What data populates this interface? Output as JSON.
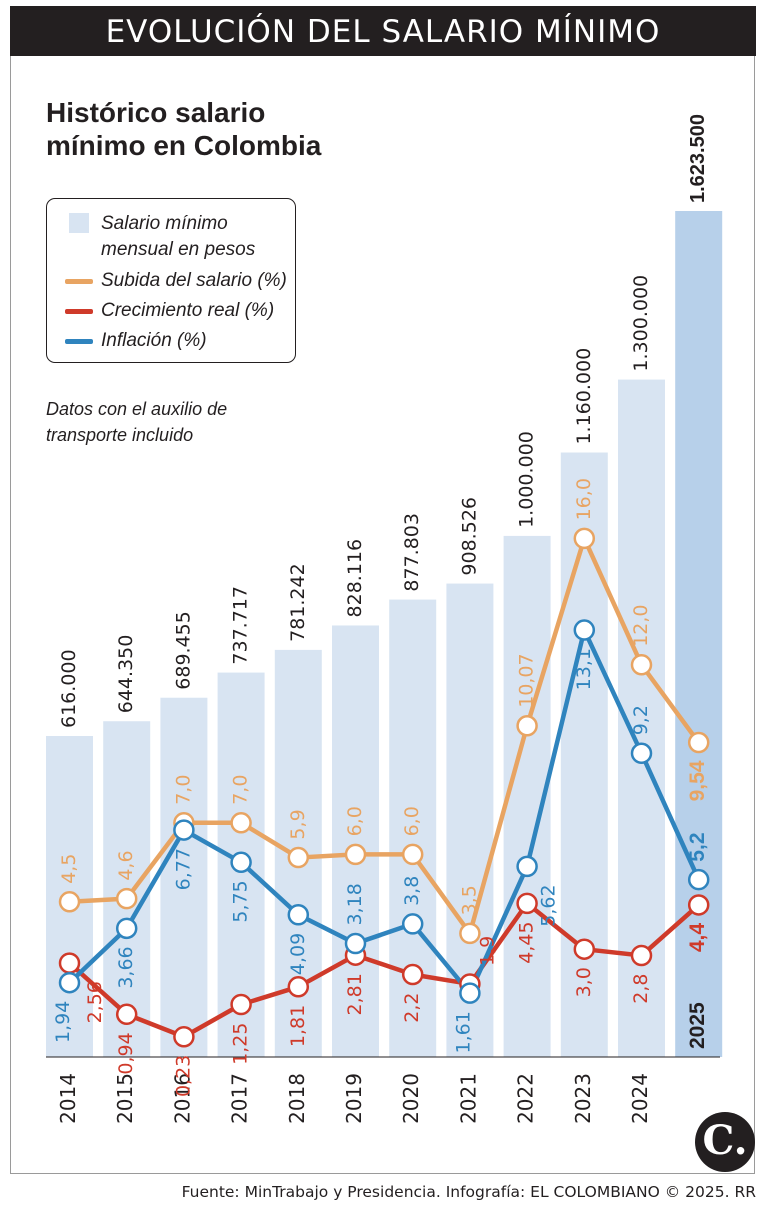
{
  "banner": {
    "title": "EVOLUCIÓN DEL SALARIO MÍNIMO"
  },
  "subtitle": "Histórico salario mínimo en Colombia",
  "legend": {
    "salary": "Salario mínimo mensual en pesos",
    "raise": "Subida del salario (%)",
    "real": "Crecimiento real (%)",
    "inflation": "Inflación (%)"
  },
  "note": "Datos con el auxilio de transporte incluido",
  "source": "Fuente: MinTrabajo y Presidencia. Infografía: EL COLOMBIANO © 2025. RR",
  "logo": "C.",
  "colors": {
    "bar": "#d8e4f2",
    "bar_highlight": "#b7d0ea",
    "raise": "#e8a462",
    "real": "#cf3a2a",
    "inflation": "#2f84be",
    "text": "#231f20"
  },
  "chart_data": {
    "type": "bar",
    "title": "Histórico salario mínimo en Colombia",
    "categories": [
      "2014",
      "2015",
      "2016",
      "2017",
      "2018",
      "2019",
      "2020",
      "2021",
      "2022",
      "2023",
      "2024",
      "2025"
    ],
    "bar_labels": [
      "616.000",
      "644.350",
      "689.455",
      "737.717",
      "781.242",
      "828.116",
      "877.803",
      "908.526",
      "1.000.000",
      "1.160.000",
      "1.300.000",
      "1.623.500"
    ],
    "series": [
      {
        "name": "Salario mínimo mensual en pesos",
        "kind": "bar",
        "values": [
          616000,
          644350,
          689455,
          737717,
          781242,
          828116,
          877803,
          908526,
          1000000,
          1160000,
          1300000,
          1623500
        ]
      },
      {
        "name": "Subida del salario (%)",
        "kind": "line",
        "values": [
          4.5,
          4.6,
          7.0,
          7.0,
          5.9,
          6.0,
          6.0,
          3.5,
          10.07,
          16.0,
          12.0,
          9.54
        ],
        "labels": [
          "4,5",
          "4,6",
          "7,0",
          "7,0",
          "5,9",
          "6,0",
          "6,0",
          "3,5",
          "10,07",
          "16,0",
          "12,0",
          "9,54"
        ]
      },
      {
        "name": "Crecimiento real (%)",
        "kind": "line",
        "values": [
          2.56,
          0.94,
          0.23,
          1.25,
          1.81,
          2.81,
          2.2,
          1.9,
          4.45,
          3.0,
          2.8,
          4.4
        ],
        "labels": [
          "2,56",
          "0,94",
          "0,23",
          "1,25",
          "1,81",
          "2,81",
          "2,2",
          "1,9",
          "4,45",
          "3,0",
          "2,8",
          "4,4"
        ]
      },
      {
        "name": "Inflación (%)",
        "kind": "line",
        "values": [
          1.94,
          3.66,
          6.77,
          5.75,
          4.09,
          3.18,
          3.8,
          1.61,
          5.62,
          13.1,
          9.2,
          5.2
        ],
        "labels": [
          "1,94",
          "3,66",
          "6,77",
          "5,75",
          "4,09",
          "3,18",
          "3,8",
          "1,61",
          "5,62",
          "13,1",
          "9,2",
          "5,2"
        ]
      }
    ],
    "bar_ylim": [
      0,
      1700000
    ],
    "line_ylim": [
      -2.5,
      22
    ],
    "highlight_category": "2025",
    "legend_position": "top-left"
  }
}
